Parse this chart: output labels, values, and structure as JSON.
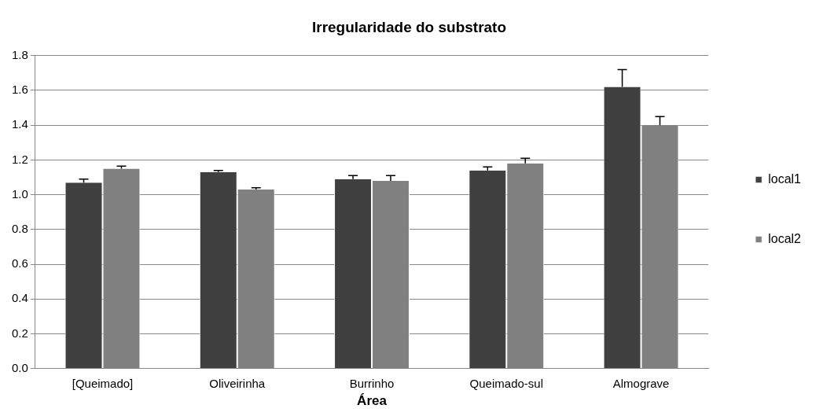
{
  "chart_data": {
    "type": "bar",
    "title": "Irregularidade do substrato",
    "xlabel": "Área",
    "categories": [
      "[Queimado]",
      "Oliveirinha",
      "Burrinho",
      "Queimado-sul",
      "Almograve"
    ],
    "series": [
      {
        "name": "local1",
        "color": "#404040",
        "values": [
          1.07,
          1.13,
          1.09,
          1.14,
          1.62
        ],
        "errors": [
          [
            1.07,
            1.09
          ],
          [
            1.13,
            1.14
          ],
          [
            1.09,
            1.11
          ],
          [
            1.14,
            1.16
          ],
          [
            1.62,
            1.72
          ]
        ]
      },
      {
        "name": "local2",
        "color": "#808080",
        "values": [
          1.15,
          1.03,
          1.08,
          1.18,
          1.4
        ],
        "errors": [
          [
            1.15,
            1.165
          ],
          [
            1.03,
            1.04
          ],
          [
            1.08,
            1.11
          ],
          [
            1.18,
            1.21
          ],
          [
            1.4,
            1.45
          ]
        ]
      }
    ],
    "ylim": [
      0,
      1.8
    ],
    "yticks": [
      {
        "value": 0,
        "label": "0.0"
      },
      0.2,
      0.4,
      0.6,
      0.8,
      {
        "value": 1,
        "label": "1.0"
      },
      1.2,
      1.4,
      1.6,
      1.8
    ],
    "grid": "y",
    "legend": "right"
  }
}
